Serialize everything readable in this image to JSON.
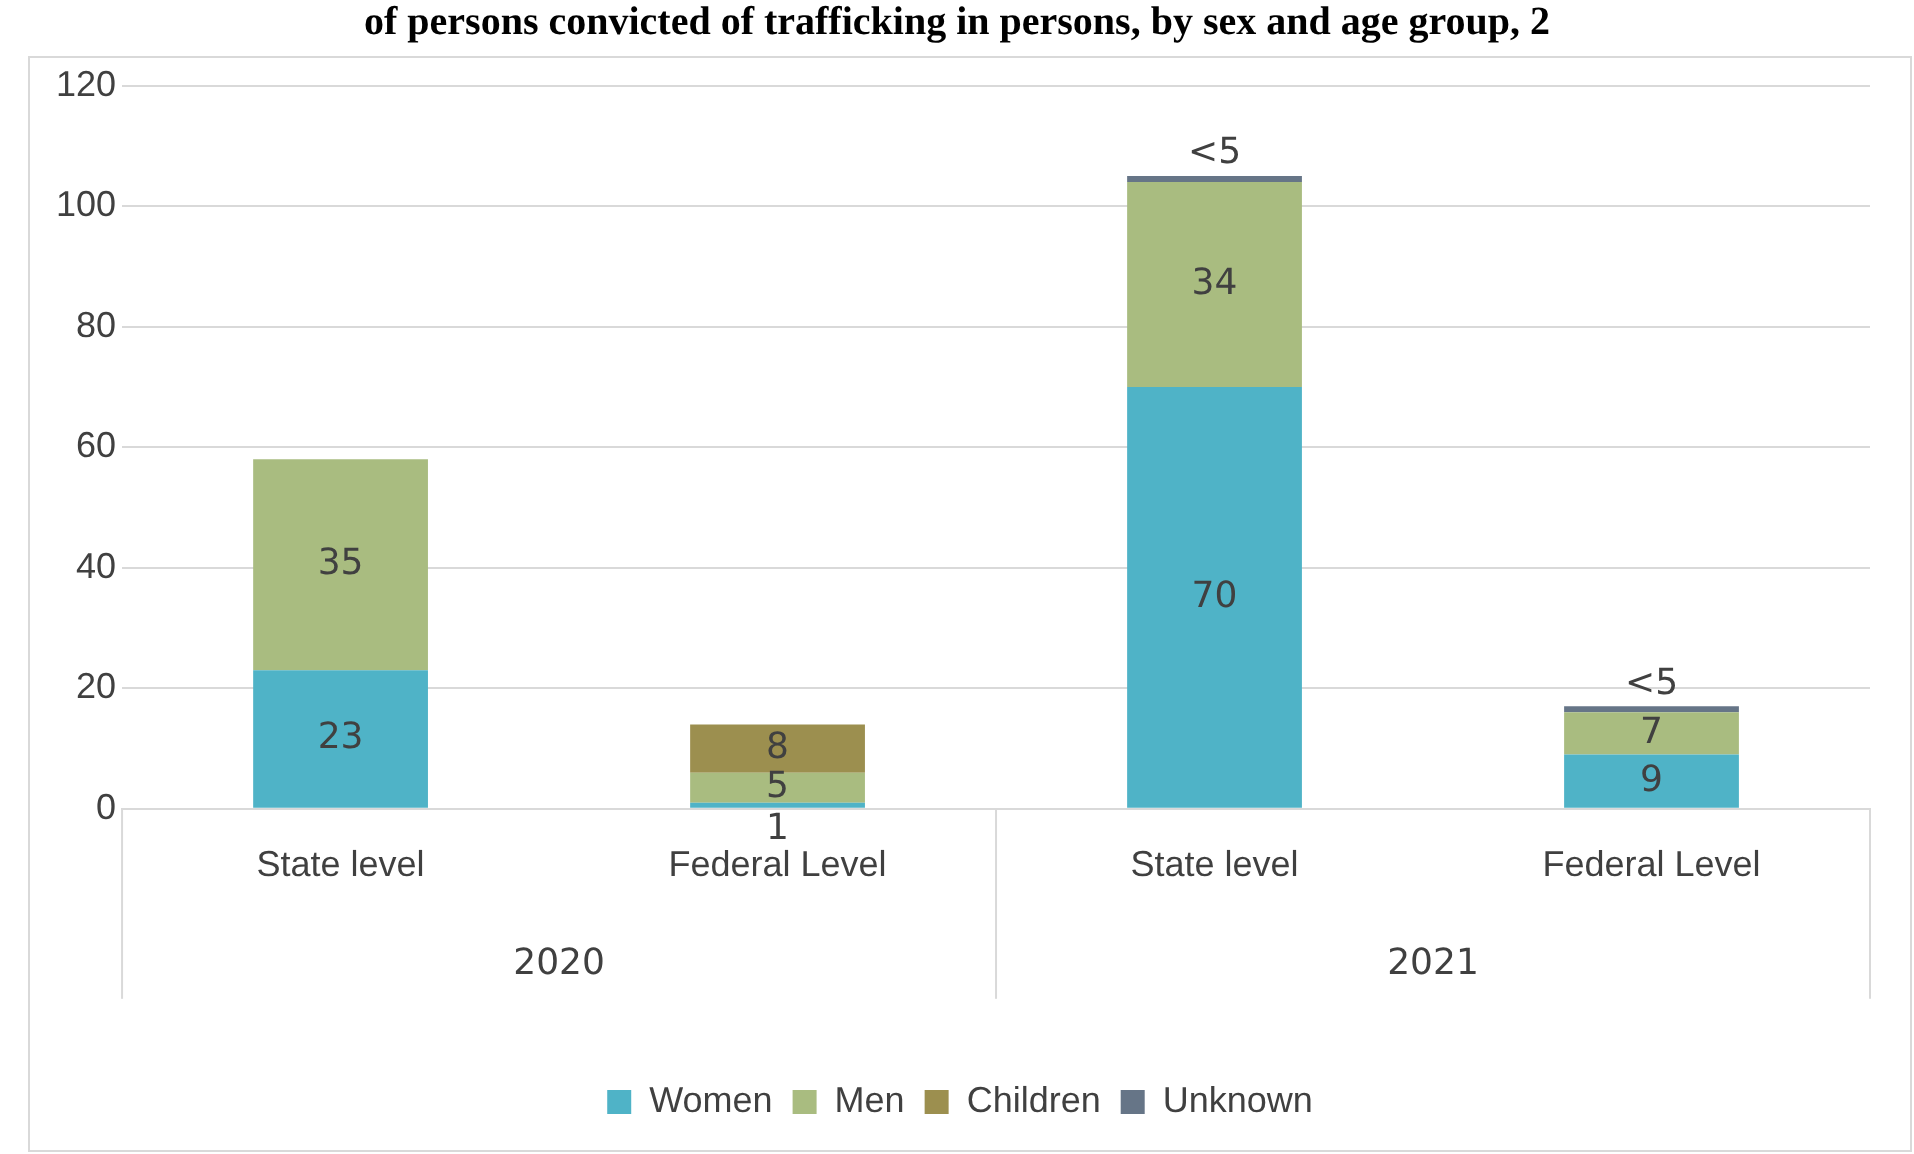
{
  "chart_data": {
    "type": "bar",
    "stacked": true,
    "title": "of persons convicted of trafficking in persons, by sex and age group, 2",
    "categories": [
      "State level",
      "Federal Level",
      "State level",
      "Federal Level"
    ],
    "series": [
      {
        "name": "Women",
        "color": "#4fb3c7",
        "values": [
          23,
          1,
          70,
          9
        ],
        "value_labels": [
          "23",
          "1",
          "70",
          "9"
        ]
      },
      {
        "name": "Men",
        "color": "#a9bc80",
        "values": [
          35,
          5,
          34,
          7
        ],
        "value_labels": [
          "35",
          "5",
          "34",
          "7"
        ]
      },
      {
        "name": "Children",
        "color": "#9c8f4f",
        "values": [
          null,
          8,
          null,
          null
        ],
        "value_labels": [
          null,
          "8",
          null,
          null
        ]
      },
      {
        "name": "Unknown",
        "color": "#667587",
        "values": [
          null,
          null,
          1,
          1
        ],
        "value_labels": [
          null,
          null,
          "<5",
          "<5"
        ]
      }
    ],
    "annotations": [
      "2020",
      "2021"
    ],
    "ylim": [
      0,
      120
    ],
    "yticks": [
      0,
      20,
      40,
      60,
      80,
      100,
      120
    ],
    "grid": "y",
    "legend": "bottom"
  }
}
